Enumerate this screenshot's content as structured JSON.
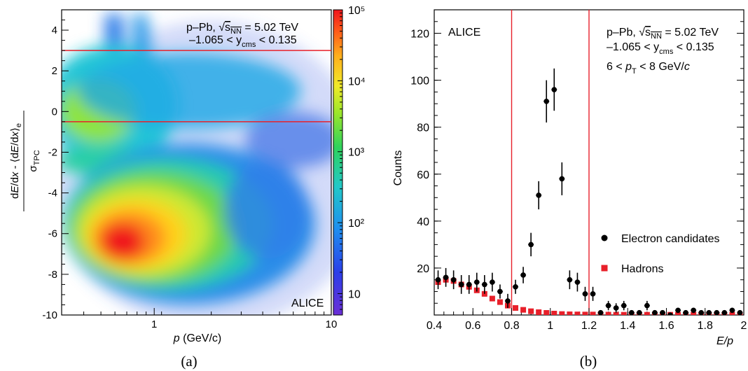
{
  "chart_data": [
    {
      "panel_label": "(a)",
      "type": "heatmap",
      "xlabel_var": "p",
      "xlabel_unit": " (GeV/c)",
      "x_scale": "log",
      "xlim": [
        0.3,
        10
      ],
      "xticks": [
        {
          "value": 1,
          "label": "1"
        },
        {
          "value": 10,
          "label": "10"
        }
      ],
      "ylabel_num": "dE/dx - ⟨dE/dx⟩e",
      "ylabel_den": "σTPC",
      "ylim": [
        -10,
        5
      ],
      "yticks": [
        -10,
        -8,
        -6,
        -4,
        -2,
        0,
        2,
        4
      ],
      "colorbar": {
        "scale": "log",
        "range": [
          5,
          100000
        ],
        "labels": [
          {
            "value": 10,
            "label": "10"
          },
          {
            "value": 100,
            "label": "10²"
          },
          {
            "value": 1000,
            "label": "10³"
          },
          {
            "value": 10000,
            "label": "10⁴"
          },
          {
            "value": 100000,
            "label": "10⁵"
          }
        ]
      },
      "cut_lines_y": [
        3,
        -0.5
      ],
      "line_color": "#e8202a",
      "annotations": [
        "p–Pb, √sNN = 5.02 TeV",
        "–1.065 < ycms < 0.135"
      ],
      "experiment_label": "ALICE",
      "density_bands": [
        {
          "center_p": 0.75,
          "center_y": -6.8,
          "peak": "maximum"
        },
        {
          "center_p": 0.45,
          "center_y": 0.2,
          "peak": "secondary"
        },
        {
          "center_p": 2.0,
          "center_y": -4.5,
          "peak": "tertiary"
        }
      ]
    },
    {
      "panel_label": "(b)",
      "type": "scatter",
      "xlabel": "E/p",
      "ylabel": "Counts",
      "xlim": [
        0.4,
        2.0
      ],
      "ylim": [
        0,
        130
      ],
      "xticks": [
        0.4,
        0.6,
        0.8,
        1,
        1.2,
        1.4,
        1.6,
        1.8,
        2
      ],
      "yticks": [
        20,
        40,
        60,
        80,
        100,
        120
      ],
      "cut_lines_x": [
        0.8,
        1.2
      ],
      "line_color": "#e8202a",
      "annotations": [
        "p–Pb, √sNN = 5.02 TeV",
        "–1.065 < ycms < 0.135",
        "6 < pT < 8 GeV/c"
      ],
      "experiment_label": "ALICE",
      "legend_position": "bottom-right",
      "series": [
        {
          "name": "Electron candidates",
          "marker": "circle",
          "color": "#000000",
          "points": [
            [
              0.42,
              15,
              4
            ],
            [
              0.46,
              16,
              4
            ],
            [
              0.5,
              15,
              4
            ],
            [
              0.54,
              13,
              4
            ],
            [
              0.58,
              13,
              4
            ],
            [
              0.62,
              14,
              4
            ],
            [
              0.66,
              13,
              4
            ],
            [
              0.7,
              14,
              4
            ],
            [
              0.74,
              10,
              3
            ],
            [
              0.78,
              6,
              3
            ],
            [
              0.82,
              12,
              3
            ],
            [
              0.86,
              17,
              3.5
            ],
            [
              0.9,
              30,
              5
            ],
            [
              0.94,
              51,
              6
            ],
            [
              0.98,
              91,
              9
            ],
            [
              1.02,
              96,
              9
            ],
            [
              1.06,
              58,
              7
            ],
            [
              1.1,
              15,
              4
            ],
            [
              1.14,
              14,
              4
            ],
            [
              1.18,
              9,
              3
            ],
            [
              1.22,
              9,
              3
            ],
            [
              1.26,
              1,
              0.8
            ],
            [
              1.3,
              4,
              2
            ],
            [
              1.34,
              3,
              2
            ],
            [
              1.38,
              4,
              2
            ],
            [
              1.42,
              1,
              0.8
            ],
            [
              1.46,
              1,
              0.8
            ],
            [
              1.5,
              4,
              2
            ],
            [
              1.54,
              1,
              0.8
            ],
            [
              1.58,
              1,
              0.8
            ],
            [
              1.62,
              0,
              0
            ],
            [
              1.66,
              2,
              1
            ],
            [
              1.7,
              1,
              0.8
            ],
            [
              1.74,
              2,
              1
            ],
            [
              1.78,
              1,
              0.8
            ],
            [
              1.82,
              1,
              0.8
            ],
            [
              1.86,
              1,
              0.8
            ],
            [
              1.9,
              1,
              0.8
            ],
            [
              1.94,
              2,
              1
            ],
            [
              1.98,
              1,
              0.8
            ]
          ]
        },
        {
          "name": "Hadrons",
          "marker": "square",
          "color": "#e8202a",
          "points": [
            [
              0.42,
              14
            ],
            [
              0.46,
              15
            ],
            [
              0.5,
              14.5
            ],
            [
              0.54,
              13
            ],
            [
              0.58,
              12
            ],
            [
              0.62,
              10.5
            ],
            [
              0.66,
              9
            ],
            [
              0.7,
              7
            ],
            [
              0.74,
              5.5
            ],
            [
              0.78,
              4
            ],
            [
              0.82,
              3
            ],
            [
              0.86,
              2.2
            ],
            [
              0.9,
              1.6
            ],
            [
              0.94,
              1.2
            ],
            [
              0.98,
              0.9
            ],
            [
              1.02,
              0.6
            ],
            [
              1.06,
              0.4
            ],
            [
              1.1,
              0.3
            ],
            [
              1.14,
              0.25
            ],
            [
              1.18,
              0.2
            ],
            [
              1.22,
              0.2
            ],
            [
              1.26,
              0.15
            ],
            [
              1.3,
              0.15
            ],
            [
              1.34,
              0.1
            ],
            [
              1.38,
              0.1
            ],
            [
              1.42,
              0.1
            ],
            [
              1.46,
              0.1
            ],
            [
              1.5,
              0.1
            ],
            [
              1.54,
              0.1
            ],
            [
              1.58,
              0.1
            ],
            [
              1.62,
              0.1
            ],
            [
              1.66,
              0.1
            ],
            [
              1.7,
              0.1
            ],
            [
              1.74,
              0.1
            ],
            [
              1.78,
              0.1
            ],
            [
              1.82,
              0.1
            ],
            [
              1.86,
              0.1
            ],
            [
              1.9,
              0.1
            ],
            [
              1.94,
              0.1
            ],
            [
              1.98,
              0.1
            ]
          ]
        }
      ]
    }
  ]
}
